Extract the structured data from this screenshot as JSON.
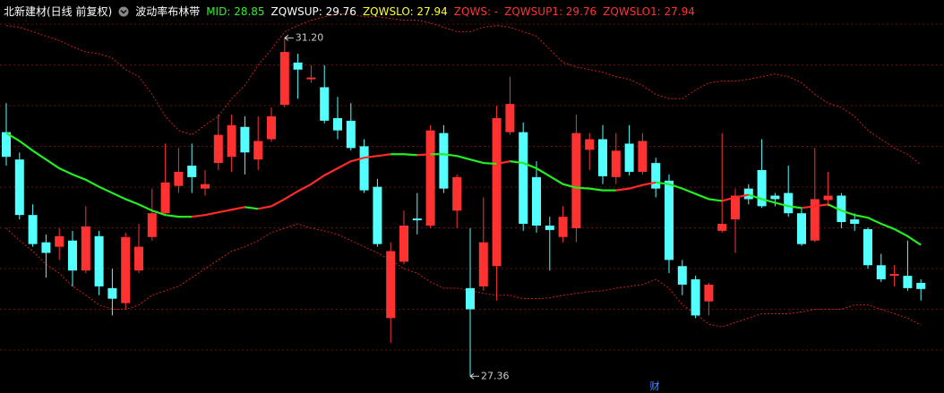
{
  "chart_data": {
    "type": "candlestick",
    "title": "北新建材(日线 前复权)",
    "subtitle": "波动率布林带",
    "indicators": [
      {
        "text": "MID: 28.85",
        "color": "#33ee33"
      },
      {
        "text": "ZQWSUP: 29.76",
        "color": "#ffffff"
      },
      {
        "text": "ZQWSLO: 27.94",
        "color": "#ffff33"
      },
      {
        "text": "ZQWS: -",
        "color": "#ff3333"
      },
      {
        "text": "ZQWSUP1: 29.76",
        "color": "#ff3333"
      },
      {
        "text": "ZQWSLO1: 27.94",
        "color": "#ff3333"
      }
    ],
    "ylim": [
      27.17,
      31.63
    ],
    "up_color": "#ff3232",
    "down_color": "#54ffff",
    "open": [
      30.13,
      29.82,
      29.19,
      28.88,
      28.83,
      28.9,
      28.56,
      28.95,
      28.36,
      28.19,
      28.56,
      28.94,
      29.21,
      29.52,
      29.75,
      29.49,
      29.78,
      29.85,
      30.19,
      29.82,
      30.05,
      30.44,
      30.92,
      30.73,
      30.64,
      30.29,
      30.26,
      29.97,
      29.51,
      28.02,
      28.66,
      29.15,
      29.07,
      30.12,
      29.24,
      28.36,
      28.38,
      28.61,
      30.13,
      30.13,
      29.62,
      29.07,
      28.94,
      29.04,
      29.93,
      30.05,
      29.62,
      30.0,
      29.68,
      29.78,
      29.58,
      28.61,
      28.46,
      28.21,
      29.01,
      29.14,
      29.49,
      29.7,
      29.41,
      29.44,
      29.21,
      28.9,
      29.36,
      29.41,
      29.14,
      29.03,
      28.62,
      28.5,
      28.5,
      28.42
    ],
    "high": [
      30.46,
      29.9,
      29.31,
      28.97,
      29.04,
      29.01,
      29.29,
      29.01,
      28.58,
      28.99,
      29.09,
      29.49,
      30.0,
      29.95,
      30.0,
      29.7,
      30.33,
      30.33,
      30.31,
      30.31,
      30.41,
      31.2,
      31.02,
      30.89,
      30.89,
      30.53,
      30.46,
      30.05,
      29.6,
      28.88,
      29.24,
      29.44,
      30.21,
      30.21,
      29.65,
      29.04,
      29.39,
      30.43,
      30.76,
      30.24,
      29.8,
      29.17,
      29.29,
      30.33,
      30.12,
      30.21,
      30.12,
      30.21,
      30.12,
      29.84,
      29.65,
      28.68,
      28.5,
      28.42,
      30.12,
      29.49,
      29.54,
      30.05,
      29.44,
      29.75,
      29.27,
      29.95,
      29.68,
      29.44,
      29.21,
      29.05,
      28.75,
      28.62,
      28.9,
      28.46
    ],
    "low": [
      29.75,
      29.14,
      28.83,
      28.48,
      28.68,
      28.38,
      28.53,
      28.28,
      28.05,
      28.12,
      28.53,
      28.9,
      29.19,
      29.44,
      29.44,
      29.41,
      29.7,
      29.68,
      29.65,
      29.7,
      30.02,
      30.41,
      30.51,
      30.69,
      30.23,
      30.05,
      29.92,
      29.44,
      28.83,
      27.74,
      28.63,
      28.97,
      29.04,
      29.44,
      29.04,
      27.36,
      28.33,
      28.22,
      30.1,
      29.01,
      28.99,
      28.56,
      28.88,
      28.88,
      29.7,
      29.54,
      29.54,
      29.64,
      29.65,
      29.39,
      28.53,
      28.28,
      28.02,
      28.05,
      28.99,
      28.76,
      29.31,
      29.27,
      29.29,
      29.17,
      28.84,
      28.88,
      29.29,
      29.04,
      29.01,
      28.58,
      28.43,
      28.38,
      28.33,
      28.22
    ],
    "close": [
      29.85,
      29.19,
      28.86,
      28.76,
      28.95,
      28.56,
      29.06,
      28.38,
      28.24,
      28.94,
      28.83,
      29.21,
      29.56,
      29.68,
      29.62,
      29.54,
      30.1,
      30.21,
      29.9,
      30.03,
      30.31,
      31.04,
      30.84,
      30.75,
      30.26,
      30.15,
      29.95,
      29.47,
      28.86,
      28.78,
      29.07,
      29.13,
      30.15,
      29.49,
      29.62,
      28.12,
      28.88,
      30.29,
      30.45,
      29.09,
      29.07,
      29.02,
      29.17,
      30.12,
      30.05,
      29.63,
      29.92,
      29.68,
      30.03,
      29.49,
      28.68,
      28.4,
      28.05,
      28.4,
      29.09,
      29.41,
      29.37,
      29.29,
      29.37,
      29.21,
      28.86,
      29.37,
      29.41,
      29.11,
      29.09,
      28.62,
      28.46,
      28.52,
      28.36,
      28.35
    ],
    "series": [
      {
        "color_up": "#ff2a2a",
        "color_down": "#22ee22",
        "values": [
          30.12,
          30.03,
          29.92,
          29.82,
          29.72,
          29.65,
          29.59,
          29.51,
          29.44,
          29.37,
          29.31,
          29.24,
          29.19,
          29.17,
          29.17,
          29.19,
          29.22,
          29.25,
          29.28,
          29.26,
          29.29,
          29.37,
          29.46,
          29.54,
          29.64,
          29.72,
          29.8,
          29.84,
          29.86,
          29.88,
          29.88,
          29.87,
          29.88,
          29.88,
          29.86,
          29.82,
          29.78,
          29.77,
          29.8,
          29.78,
          29.72,
          29.63,
          29.54,
          29.5,
          29.49,
          29.47,
          29.47,
          29.49,
          29.53,
          29.56,
          29.54,
          29.49,
          29.43,
          29.37,
          29.35,
          29.39,
          29.42,
          29.37,
          29.33,
          29.29,
          29.27,
          29.29,
          29.31,
          29.24,
          29.19,
          29.16,
          29.09,
          29.03,
          28.95,
          28.85
        ]
      },
      {
        "color": "#c82020",
        "dashed": true,
        "values": [
          31.34,
          31.32,
          31.27,
          31.22,
          31.17,
          31.1,
          31.04,
          31.02,
          30.97,
          30.84,
          30.76,
          30.56,
          30.31,
          30.15,
          30.1,
          30.21,
          30.31,
          30.51,
          30.66,
          30.89,
          31.07,
          31.27,
          31.34,
          31.4,
          31.44,
          31.47,
          31.47,
          31.44,
          31.44,
          31.42,
          31.4,
          31.4,
          31.37,
          31.32,
          31.27,
          31.27,
          31.32,
          31.34,
          31.32,
          31.27,
          31.22,
          31.07,
          30.92,
          30.87,
          30.84,
          30.81,
          30.76,
          30.73,
          30.66,
          30.56,
          30.51,
          30.51,
          30.61,
          30.69,
          30.71,
          30.71,
          30.73,
          30.76,
          30.79,
          30.76,
          30.69,
          30.56,
          30.46,
          30.41,
          30.31,
          30.15,
          30.05,
          29.95,
          29.88,
          29.76
        ]
      },
      {
        "color": "#c82020",
        "dashed": true,
        "values": [
          29.04,
          28.9,
          28.78,
          28.63,
          28.53,
          28.38,
          28.28,
          28.17,
          28.12,
          28.12,
          28.17,
          28.28,
          28.33,
          28.38,
          28.48,
          28.58,
          28.68,
          28.78,
          28.83,
          28.9,
          28.99,
          29.04,
          29.09,
          29.04,
          29.01,
          28.97,
          28.9,
          28.83,
          28.76,
          28.68,
          28.58,
          28.53,
          28.43,
          28.36,
          28.36,
          28.33,
          28.3,
          28.28,
          28.28,
          28.24,
          28.24,
          28.25,
          28.28,
          28.3,
          28.32,
          28.33,
          28.36,
          28.38,
          28.4,
          28.46,
          28.36,
          28.17,
          28.07,
          27.95,
          27.92,
          27.97,
          28.02,
          28.07,
          28.07,
          28.07,
          28.09,
          28.12,
          28.12,
          28.12,
          28.17,
          28.17,
          28.12,
          28.07,
          28.02,
          27.94
        ]
      }
    ],
    "max_label": "31.20",
    "min_label": "27.36",
    "marker": "财"
  }
}
